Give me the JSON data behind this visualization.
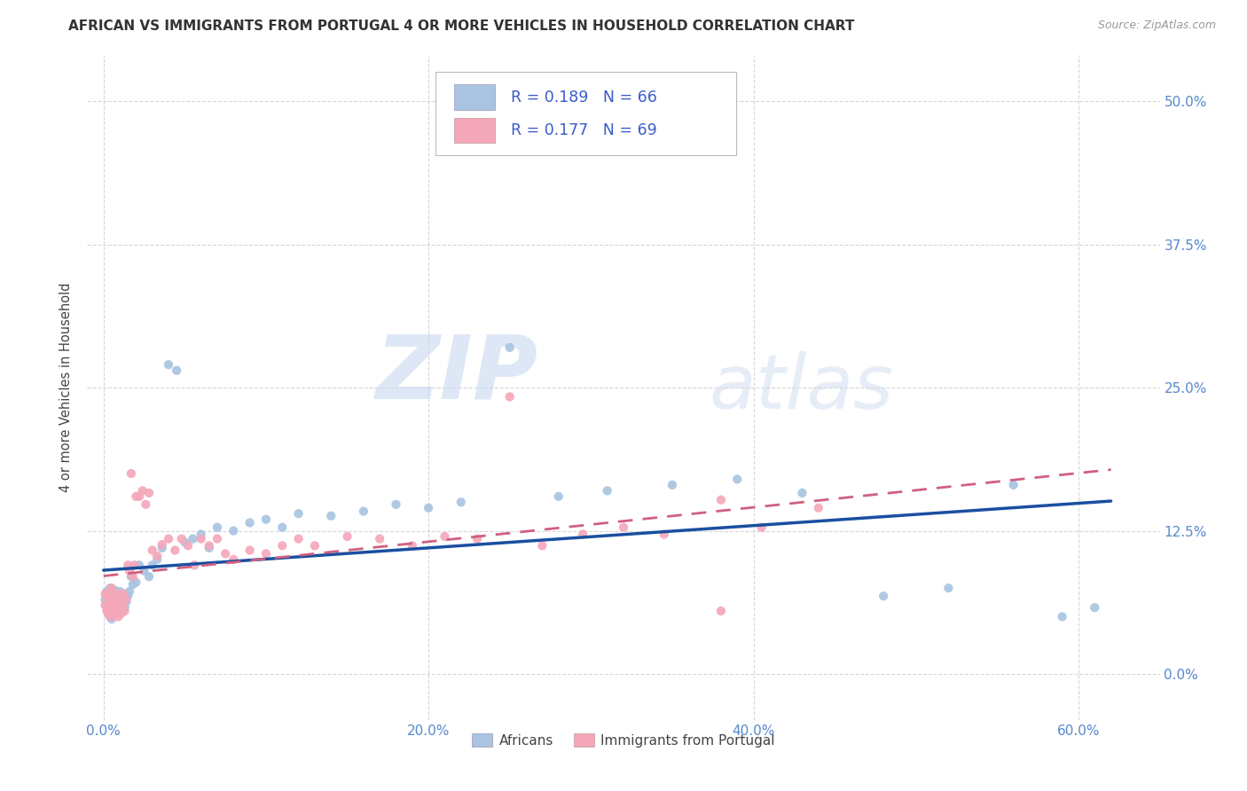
{
  "title": "AFRICAN VS IMMIGRANTS FROM PORTUGAL 4 OR MORE VEHICLES IN HOUSEHOLD CORRELATION CHART",
  "source": "Source: ZipAtlas.com",
  "ylabel": "4 or more Vehicles in Household",
  "xlabel_ticks": [
    "0.0%",
    "20.0%",
    "40.0%",
    "60.0%"
  ],
  "xlabel_vals": [
    0.0,
    0.2,
    0.4,
    0.6
  ],
  "ylabel_ticks": [
    "0.0%",
    "12.5%",
    "25.0%",
    "37.5%",
    "50.0%"
  ],
  "ylabel_vals": [
    0.0,
    0.125,
    0.25,
    0.375,
    0.5
  ],
  "xlim": [
    -0.01,
    0.65
  ],
  "ylim": [
    -0.04,
    0.54
  ],
  "africans_R": 0.189,
  "africans_N": 66,
  "portugal_R": 0.177,
  "portugal_N": 69,
  "africans_color": "#a8c4e0",
  "portugal_color": "#f4a7b9",
  "trend_africa_color": "#1a4fa0",
  "trend_portugal_color": "#d06080",
  "background_color": "#ffffff",
  "grid_color": "#cccccc",
  "watermark_zip": "ZIP",
  "watermark_atlas": "atlas",
  "legend_label_1": "Africans",
  "legend_label_2": "Immigrants from Portugal",
  "africans_x": [
    0.001,
    0.002,
    0.002,
    0.003,
    0.003,
    0.004,
    0.004,
    0.004,
    0.005,
    0.005,
    0.005,
    0.006,
    0.006,
    0.007,
    0.007,
    0.007,
    0.008,
    0.008,
    0.009,
    0.009,
    0.01,
    0.01,
    0.011,
    0.011,
    0.012,
    0.013,
    0.014,
    0.015,
    0.016,
    0.017,
    0.018,
    0.02,
    0.022,
    0.025,
    0.028,
    0.03,
    0.033,
    0.036,
    0.04,
    0.045,
    0.05,
    0.055,
    0.06,
    0.065,
    0.07,
    0.08,
    0.09,
    0.1,
    0.11,
    0.12,
    0.14,
    0.16,
    0.18,
    0.2,
    0.22,
    0.25,
    0.28,
    0.31,
    0.35,
    0.39,
    0.43,
    0.48,
    0.52,
    0.56,
    0.59,
    0.61
  ],
  "africans_y": [
    0.065,
    0.058,
    0.072,
    0.055,
    0.068,
    0.06,
    0.075,
    0.05,
    0.063,
    0.07,
    0.048,
    0.058,
    0.067,
    0.052,
    0.06,
    0.073,
    0.055,
    0.065,
    0.058,
    0.068,
    0.06,
    0.072,
    0.055,
    0.065,
    0.07,
    0.058,
    0.063,
    0.068,
    0.072,
    0.085,
    0.078,
    0.08,
    0.095,
    0.09,
    0.085,
    0.095,
    0.1,
    0.11,
    0.27,
    0.265,
    0.115,
    0.118,
    0.122,
    0.11,
    0.128,
    0.125,
    0.132,
    0.135,
    0.128,
    0.14,
    0.138,
    0.142,
    0.148,
    0.145,
    0.15,
    0.285,
    0.155,
    0.16,
    0.165,
    0.17,
    0.158,
    0.068,
    0.075,
    0.165,
    0.05,
    0.058
  ],
  "portugal_x": [
    0.001,
    0.001,
    0.002,
    0.002,
    0.003,
    0.003,
    0.004,
    0.004,
    0.005,
    0.005,
    0.005,
    0.006,
    0.006,
    0.007,
    0.007,
    0.008,
    0.008,
    0.009,
    0.009,
    0.01,
    0.01,
    0.011,
    0.011,
    0.012,
    0.012,
    0.013,
    0.014,
    0.015,
    0.016,
    0.017,
    0.018,
    0.019,
    0.02,
    0.022,
    0.024,
    0.026,
    0.028,
    0.03,
    0.033,
    0.036,
    0.04,
    0.044,
    0.048,
    0.052,
    0.056,
    0.06,
    0.065,
    0.07,
    0.075,
    0.08,
    0.09,
    0.1,
    0.11,
    0.12,
    0.13,
    0.15,
    0.17,
    0.19,
    0.21,
    0.23,
    0.25,
    0.27,
    0.295,
    0.32,
    0.345,
    0.38,
    0.405,
    0.44,
    0.38
  ],
  "portugal_y": [
    0.06,
    0.07,
    0.055,
    0.068,
    0.052,
    0.065,
    0.058,
    0.072,
    0.05,
    0.063,
    0.075,
    0.058,
    0.068,
    0.053,
    0.062,
    0.055,
    0.07,
    0.05,
    0.065,
    0.058,
    0.068,
    0.053,
    0.063,
    0.058,
    0.07,
    0.055,
    0.065,
    0.095,
    0.09,
    0.175,
    0.085,
    0.095,
    0.155,
    0.155,
    0.16,
    0.148,
    0.158,
    0.108,
    0.103,
    0.113,
    0.118,
    0.108,
    0.118,
    0.112,
    0.095,
    0.118,
    0.112,
    0.118,
    0.105,
    0.1,
    0.108,
    0.105,
    0.112,
    0.118,
    0.112,
    0.12,
    0.118,
    0.112,
    0.12,
    0.118,
    0.242,
    0.112,
    0.122,
    0.128,
    0.122,
    0.152,
    0.128,
    0.145,
    0.055
  ]
}
